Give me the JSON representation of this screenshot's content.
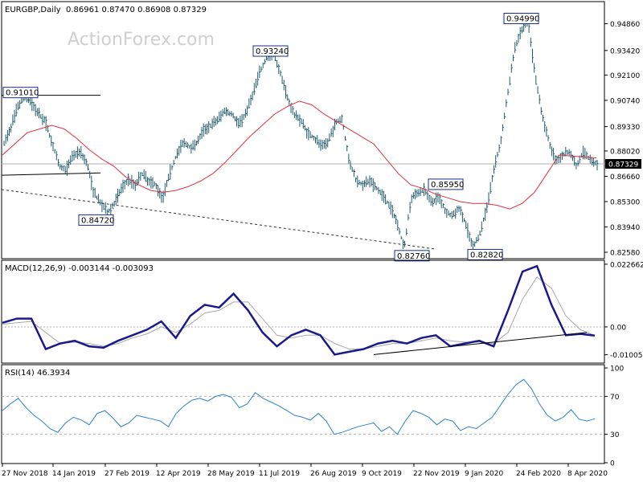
{
  "watermark": "ActionForex.com",
  "colors": {
    "price": "#1f5b6e",
    "sma": "#e0323c",
    "macd": "#1a1a8c",
    "macd_signal": "#a8a8a8",
    "rsi": "#2d7fd1",
    "label_border": "#1a2e8c",
    "grid": "#b0b0b0",
    "frame": "#000000"
  },
  "chart_data": [
    {
      "type": "ohlc",
      "title": "EURGBP,Daily",
      "ohlc_header": "0.86961 0.87470 0.86908 0.87329",
      "last_price_label": "0.87329",
      "last_price": 0.87329,
      "ylim": [
        0.8232,
        0.9596
      ],
      "yticks": [
        "0.94860",
        "0.93420",
        "0.92100",
        "0.90740",
        "0.89330",
        "0.88020",
        "0.86660",
        "0.85300",
        "0.83940",
        "0.82580"
      ],
      "ytick_values": [
        0.9486,
        0.9342,
        0.921,
        0.9074,
        0.8933,
        0.8802,
        0.8666,
        0.853,
        0.8394,
        0.8258
      ],
      "xticks": [
        "27 Nov 2018",
        "14 Jan 2019",
        "27 Feb 2019",
        "12 Apr 2019",
        "28 May 2019",
        "11 Jul 2019",
        "26 Aug 2019",
        "9 Oct 2019",
        "22 Nov 2019",
        "9 Jan 2020",
        "24 Feb 2020",
        "8 Apr 2020"
      ],
      "close_path": [
        0.884,
        0.893,
        0.904,
        0.9101,
        0.906,
        0.9,
        0.896,
        0.884,
        0.872,
        0.87,
        0.878,
        0.88,
        0.874,
        0.858,
        0.852,
        0.8472,
        0.852,
        0.86,
        0.865,
        0.862,
        0.868,
        0.864,
        0.862,
        0.855,
        0.868,
        0.878,
        0.885,
        0.882,
        0.885,
        0.892,
        0.894,
        0.897,
        0.902,
        0.9,
        0.895,
        0.9,
        0.91,
        0.922,
        0.93,
        0.9324,
        0.923,
        0.91,
        0.9,
        0.897,
        0.89,
        0.887,
        0.883,
        0.885,
        0.895,
        0.898,
        0.875,
        0.865,
        0.862,
        0.864,
        0.86,
        0.856,
        0.85,
        0.842,
        0.8276,
        0.855,
        0.858,
        0.8595,
        0.852,
        0.856,
        0.848,
        0.845,
        0.85,
        0.84,
        0.8282,
        0.836,
        0.85,
        0.87,
        0.885,
        0.91,
        0.935,
        0.945,
        0.9499,
        0.92,
        0.9,
        0.885,
        0.875,
        0.878,
        0.88,
        0.872,
        0.88,
        0.875,
        0.87329
      ],
      "sma_path": [
        0.878,
        0.884,
        0.89,
        0.892,
        0.894,
        0.892,
        0.887,
        0.881,
        0.876,
        0.872,
        0.866,
        0.862,
        0.859,
        0.858,
        0.859,
        0.861,
        0.864,
        0.868,
        0.874,
        0.881,
        0.888,
        0.894,
        0.9,
        0.904,
        0.907,
        0.905,
        0.9,
        0.896,
        0.892,
        0.888,
        0.884,
        0.876,
        0.868,
        0.862,
        0.86,
        0.857,
        0.855,
        0.853,
        0.852,
        0.852,
        0.851,
        0.849,
        0.852,
        0.858,
        0.868,
        0.878,
        0.8775,
        0.877,
        0.8765
      ],
      "labels": [
        {
          "text": "0.91010",
          "value": 0.9101
        },
        {
          "text": "0.84720",
          "value": 0.8472
        },
        {
          "text": "0.93240",
          "value": 0.9324
        },
        {
          "text": "0.82760",
          "value": 0.8276
        },
        {
          "text": "0.85950",
          "value": 0.8595
        },
        {
          "text": "0.82820",
          "value": 0.8282
        },
        {
          "text": "0.94990",
          "value": 0.9499
        }
      ],
      "hlines": [
        {
          "name": "resistance-line",
          "value": 0.9101
        },
        {
          "name": "support-line",
          "value": 0.8672
        }
      ],
      "trendline": {
        "from": 0.8595,
        "to": 0.8276
      }
    },
    {
      "type": "line",
      "title": "MACD(12,26,9) -0.003144 -0.003093",
      "ylim": [
        -0.0125,
        0.0235
      ],
      "yticks": [
        "0.022662",
        "0.00",
        "-0.010052"
      ],
      "ytick_values": [
        0.022662,
        0.0,
        -0.010052
      ],
      "zero_level": 0.0,
      "series": [
        {
          "values": [
            0.0015,
            0.003,
            0.003,
            -0.008,
            -0.006,
            -0.005,
            -0.007,
            -0.0075,
            -0.005,
            -0.003,
            -0.001,
            0.002,
            -0.004,
            0.004,
            0.008,
            0.007,
            0.012,
            0.006,
            -0.002,
            -0.007,
            -0.003,
            -0.001,
            -0.003,
            -0.01,
            -0.009,
            -0.008,
            -0.006,
            -0.005,
            -0.006,
            -0.004,
            -0.003,
            -0.007,
            -0.006,
            -0.005,
            -0.007,
            0.006,
            0.02,
            0.022,
            0.008,
            -0.003,
            -0.0025,
            -0.003144
          ]
        },
        {
          "values": [
            0.001,
            0.0015,
            0.002,
            -0.002,
            -0.006,
            -0.0055,
            -0.006,
            -0.007,
            -0.006,
            -0.004,
            -0.0025,
            0.0,
            -0.002,
            0.001,
            0.005,
            0.006,
            0.009,
            0.009,
            0.003,
            -0.003,
            -0.004,
            -0.003,
            -0.003,
            -0.006,
            -0.008,
            -0.008,
            -0.007,
            -0.006,
            -0.006,
            -0.005,
            -0.004,
            -0.005,
            -0.0055,
            -0.0055,
            -0.006,
            -0.002,
            0.01,
            0.018,
            0.014,
            0.004,
            -0.001,
            -0.003093
          ]
        }
      ],
      "trendline": {
        "from": -0.01,
        "to": -0.002
      }
    },
    {
      "type": "line",
      "title": "RSI(14) 46.3934",
      "ylim": [
        0,
        100
      ],
      "yticks": [
        "100",
        "70",
        "30",
        "0"
      ],
      "ytick_values": [
        100,
        70,
        30,
        0
      ],
      "dashed_levels": [
        70,
        30
      ],
      "series": [
        {
          "values": [
            55,
            62,
            68,
            58,
            50,
            44,
            36,
            32,
            42,
            48,
            45,
            40,
            52,
            55,
            47,
            38,
            42,
            50,
            48,
            46,
            44,
            38,
            52,
            60,
            66,
            68,
            65,
            70,
            72,
            69,
            58,
            62,
            74,
            68,
            64,
            60,
            55,
            50,
            48,
            45,
            52,
            44,
            30,
            32,
            35,
            38,
            40,
            42,
            33,
            38,
            30,
            44,
            55,
            52,
            48,
            40,
            46,
            44,
            34,
            38,
            36,
            42,
            48,
            60,
            72,
            82,
            88,
            78,
            62,
            50,
            44,
            48,
            56,
            46,
            44,
            46.3934
          ]
        }
      ]
    }
  ]
}
